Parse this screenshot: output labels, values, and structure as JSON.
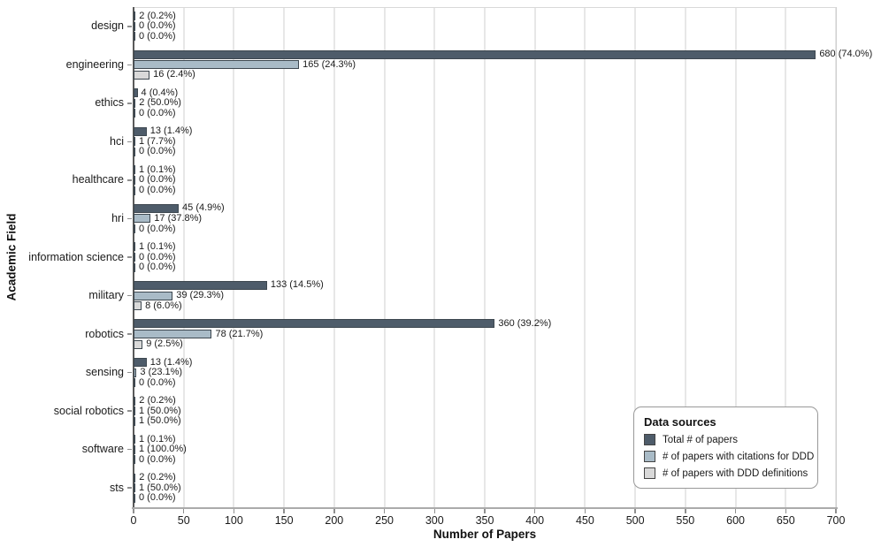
{
  "figure": {
    "legend": {
      "title": "Data sources"
    }
  },
  "colors": {
    "grid": "#e7e7e7",
    "bar_border": "#3d474f",
    "axis_left": "#5a5a5a",
    "axis_bottom": "#ababab",
    "tick": "#8f8f8f",
    "text": "#1a1a1a"
  },
  "chart_data": {
    "type": "bar",
    "orientation": "horizontal",
    "title": "",
    "xlabel": "Number of Papers",
    "ylabel": "Academic Field",
    "xlim": [
      0,
      700
    ],
    "x_ticks": [
      0,
      50,
      100,
      150,
      200,
      250,
      300,
      350,
      400,
      450,
      500,
      550,
      600,
      650,
      700
    ],
    "grid": "vertical",
    "legend_position": "bottom-right",
    "categories": [
      "design",
      "engineering",
      "ethics",
      "hci",
      "healthcare",
      "hri",
      "information science",
      "military",
      "robotics",
      "sensing",
      "social robotics",
      "software",
      "sts"
    ],
    "series": [
      {
        "name": "Total # of papers",
        "color": "#4e5c6a",
        "values": [
          2,
          680,
          4,
          13,
          1,
          45,
          1,
          133,
          360,
          13,
          2,
          1,
          2
        ],
        "labels": [
          "2 (0.2%)",
          "680 (74.0%)",
          "4 (0.4%)",
          "13 (1.4%)",
          "1 (0.1%)",
          "45 (4.9%)",
          "1 (0.1%)",
          "133 (14.5%)",
          "360 (39.2%)",
          "13 (1.4%)",
          "2 (0.2%)",
          "1 (0.1%)",
          "2 (0.2%)"
        ]
      },
      {
        "name": "# of papers with citations for DDD",
        "color": "#a9bbc7",
        "values": [
          0,
          165,
          2,
          1,
          0,
          17,
          0,
          39,
          78,
          3,
          1,
          1,
          1
        ],
        "labels": [
          "0 (0.0%)",
          "165 (24.3%)",
          "2 (50.0%)",
          "1 (7.7%)",
          "0 (0.0%)",
          "17 (37.8%)",
          "0 (0.0%)",
          "39 (29.3%)",
          "78 (21.7%)",
          "3 (23.1%)",
          "1 (50.0%)",
          "1 (100.0%)",
          "1 (50.0%)"
        ]
      },
      {
        "name": "# of papers with DDD definitions",
        "color": "#d9d9d9",
        "values": [
          0,
          16,
          0,
          0,
          0,
          0,
          0,
          8,
          9,
          0,
          1,
          0,
          0
        ],
        "labels": [
          "0 (0.0%)",
          "16 (2.4%)",
          "0 (0.0%)",
          "0 (0.0%)",
          "0 (0.0%)",
          "0 (0.0%)",
          "0 (0.0%)",
          "8 (6.0%)",
          "9 (2.5%)",
          "0 (0.0%)",
          "1 (50.0%)",
          "0 (0.0%)",
          "0 (0.0%)"
        ]
      }
    ]
  }
}
